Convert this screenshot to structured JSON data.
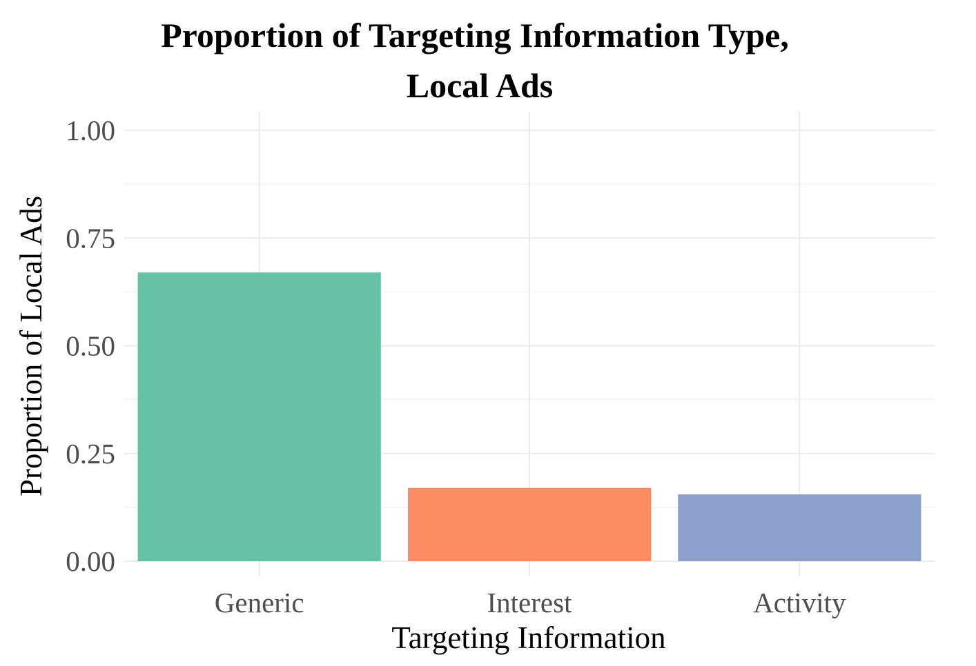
{
  "chart_data": {
    "type": "bar",
    "title_lines": [
      "Proportion of Targeting Information Type,",
      "Local Ads"
    ],
    "xlabel": "Targeting Information",
    "ylabel": "Proportion of Local Ads",
    "categories": [
      "Generic",
      "Interest",
      "Activity"
    ],
    "values": [
      0.67,
      0.17,
      0.155
    ],
    "colors": [
      "#66c2a5",
      "#fc8d62",
      "#8da0cb"
    ],
    "ylim": [
      0,
      1
    ],
    "yticks": [
      "0.00",
      "0.25",
      "0.50",
      "0.75",
      "1.00"
    ],
    "grid": true,
    "legend": "none"
  }
}
